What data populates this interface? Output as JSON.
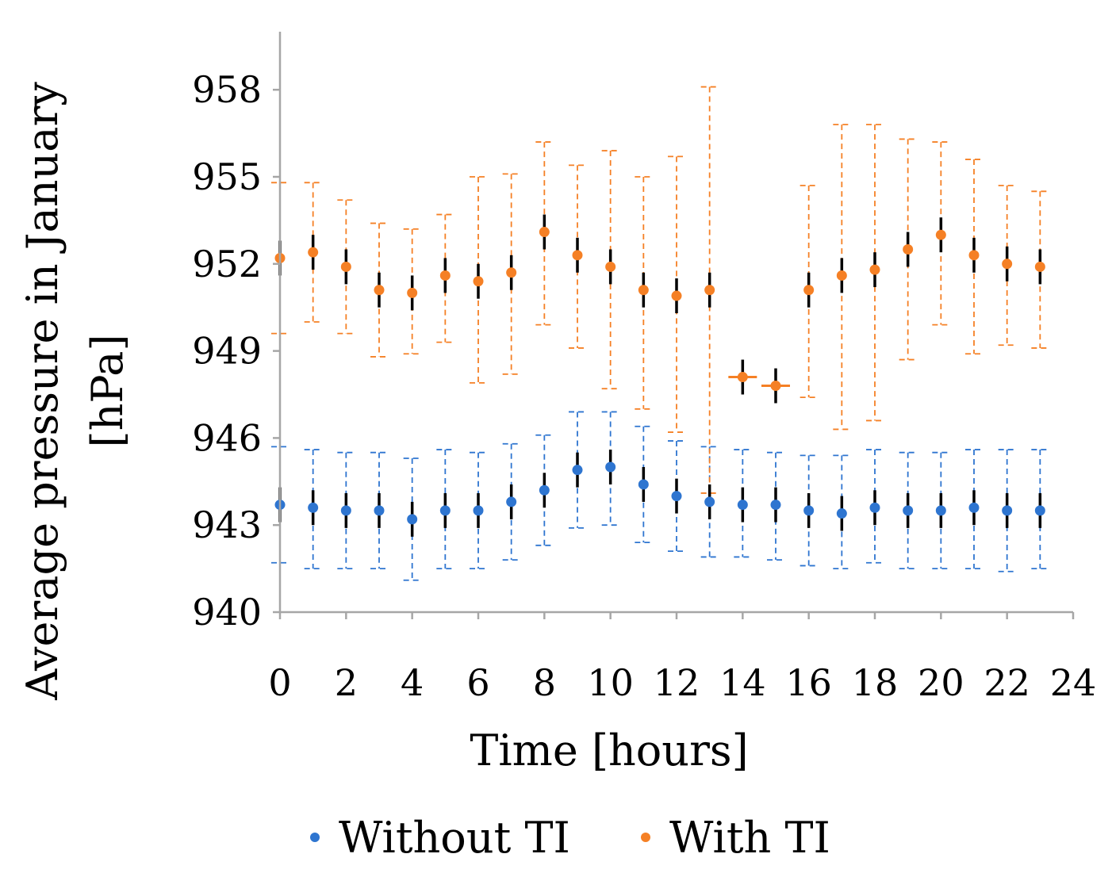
{
  "chart_data": {
    "type": "scatter",
    "title": "",
    "xlabel": "Time [hours]",
    "ylabel_lines": [
      "Average pressure in January",
      "[hPa]"
    ],
    "xlim": [
      0,
      24
    ],
    "ylim": [
      940,
      960
    ],
    "x_ticks": [
      0,
      2,
      4,
      6,
      8,
      10,
      12,
      14,
      16,
      18,
      20,
      22,
      24
    ],
    "x_tick_labels": [
      "0",
      "2",
      "4",
      "6",
      "8",
      "10",
      "12",
      "14",
      "16",
      "18",
      "20",
      "22",
      "24"
    ],
    "y_ticks": [
      940,
      943,
      946,
      949,
      952,
      955,
      958
    ],
    "y_tick_labels": [
      "940",
      "943",
      "946",
      "949",
      "952",
      "955",
      "958"
    ],
    "grid": false,
    "legend_position": "bottom",
    "x": [
      0,
      1,
      2,
      3,
      4,
      5,
      6,
      7,
      8,
      9,
      10,
      11,
      12,
      13,
      14,
      15,
      16,
      17,
      18,
      19,
      20,
      21,
      22,
      23
    ],
    "series": [
      {
        "name": "Without TI",
        "color": "#2e75d0",
        "values": [
          943.7,
          943.6,
          943.5,
          943.5,
          943.2,
          943.5,
          943.5,
          943.8,
          944.2,
          944.9,
          945.0,
          944.4,
          944.0,
          943.8,
          943.7,
          943.7,
          943.5,
          943.4,
          943.6,
          943.5,
          943.5,
          943.6,
          943.5,
          943.5
        ],
        "error_low": [
          941.7,
          941.5,
          941.5,
          941.5,
          941.1,
          941.5,
          941.5,
          941.8,
          942.3,
          942.9,
          943.0,
          942.4,
          942.1,
          941.9,
          941.9,
          941.8,
          941.6,
          941.5,
          941.7,
          941.5,
          941.5,
          941.5,
          941.4,
          941.5
        ],
        "error_high": [
          945.7,
          945.6,
          945.5,
          945.5,
          945.3,
          945.6,
          945.5,
          945.8,
          946.1,
          946.9,
          946.9,
          946.4,
          945.9,
          945.7,
          945.6,
          945.5,
          945.4,
          945.4,
          945.6,
          945.5,
          945.5,
          945.6,
          945.6,
          945.6
        ]
      },
      {
        "name": "With TI",
        "color": "#f58025",
        "values": [
          952.2,
          952.4,
          951.9,
          951.1,
          951.0,
          951.6,
          951.4,
          951.7,
          953.1,
          952.3,
          951.9,
          951.1,
          950.9,
          951.1,
          948.1,
          947.8,
          951.1,
          951.6,
          951.8,
          952.5,
          953.0,
          952.3,
          952.0,
          951.9
        ],
        "error_low": [
          949.6,
          950.0,
          949.6,
          948.8,
          948.9,
          949.3,
          947.9,
          948.2,
          949.9,
          949.1,
          947.7,
          947.0,
          946.2,
          944.1,
          null,
          null,
          947.4,
          946.3,
          946.6,
          948.7,
          949.9,
          948.9,
          949.2,
          949.1
        ],
        "error_high": [
          954.8,
          954.8,
          954.2,
          953.4,
          953.2,
          953.7,
          955.0,
          955.1,
          956.2,
          955.4,
          955.9,
          955.0,
          955.7,
          958.1,
          null,
          null,
          954.7,
          956.8,
          956.8,
          956.3,
          956.2,
          955.6,
          954.7,
          954.5
        ]
      }
    ],
    "std_marker_color": "#000000"
  }
}
